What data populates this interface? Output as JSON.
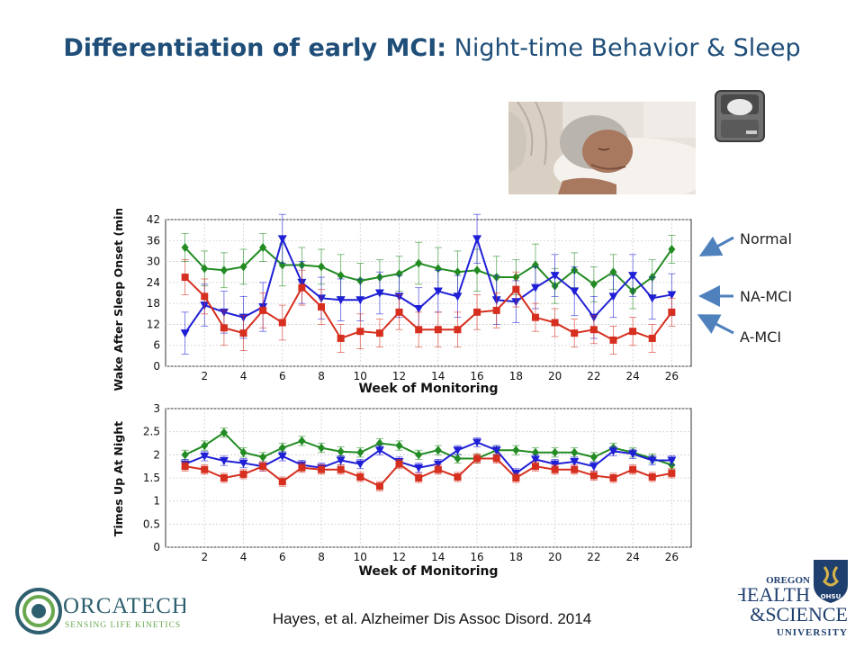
{
  "slide": {
    "title_bold": "Differentiation of early MCI:",
    "title_rest": "Night-time Behavior & Sleep",
    "citation": "Hayes, et al. Alzheimer Dis Assoc Disord. 2014",
    "group_labels": {
      "normal": "Normal",
      "na_mci": "NA-MCI",
      "a_mci": "A-MCI"
    },
    "arrow_color": "#4f81bd",
    "title_color": "#1f4e79"
  },
  "logos": {
    "orcatech": {
      "name": "ORCATECH",
      "tagline": "SENSING LIFE KINETICS",
      "color": "#2e5f6e"
    },
    "ohsu": {
      "line1": "OREGON",
      "line2": "HEALTH",
      "line3": "&SCIENCE",
      "line4": "UNIVERSITY",
      "shield_text": "OHSU",
      "color": "#1f3f6e"
    }
  },
  "chart_data": [
    {
      "type": "line",
      "xlabel": "Week of Monitoring",
      "ylabel": "Wake After Sleep Onset (mins)",
      "xlim": [
        0,
        27
      ],
      "ylim": [
        0,
        42
      ],
      "xticks": [
        2,
        4,
        6,
        8,
        10,
        12,
        14,
        16,
        18,
        20,
        22,
        24,
        26
      ],
      "yticks": [
        0,
        6,
        12,
        18,
        24,
        30,
        36,
        42
      ],
      "grid": true,
      "x": [
        1,
        2,
        3,
        4,
        5,
        6,
        7,
        8,
        9,
        10,
        11,
        12,
        13,
        14,
        15,
        16,
        17,
        18,
        19,
        20,
        21,
        22,
        23,
        24,
        25,
        26
      ],
      "series": [
        {
          "color": "#228b22",
          "marker": "diamond",
          "values": [
            34,
            28,
            27.5,
            28.5,
            34,
            29,
            29,
            28.5,
            26,
            24.5,
            25.5,
            26.5,
            29.5,
            28,
            27,
            27.5,
            25.5,
            25.5,
            29,
            23,
            27.5,
            23.5,
            27,
            21.5,
            25.5,
            33.5
          ],
          "err": [
            4,
            5,
            5,
            5,
            4,
            6,
            5,
            5,
            6,
            5,
            5,
            5,
            6,
            6,
            6,
            6,
            6,
            5,
            6,
            5,
            5,
            5,
            5,
            5,
            5,
            4
          ]
        },
        {
          "color": "#1f1fd6",
          "marker": "triangle-down",
          "values": [
            9.5,
            17.5,
            15.5,
            14,
            17,
            36.5,
            24,
            19.5,
            19,
            19,
            21,
            20,
            16.5,
            21.5,
            20,
            36.5,
            19,
            18.5,
            22.5,
            26,
            21.5,
            14,
            20,
            26,
            19.5,
            20.5
          ],
          "err": [
            6,
            6,
            6,
            6,
            7,
            7,
            6,
            6,
            6,
            6,
            6,
            6,
            6,
            6,
            6,
            7,
            7,
            6,
            6,
            6,
            7,
            6,
            6,
            6,
            6,
            6
          ]
        },
        {
          "color": "#d62f1f",
          "marker": "square",
          "values": [
            25.5,
            20,
            11,
            9.5,
            16,
            12.5,
            22.5,
            17,
            8,
            10,
            9.5,
            15.5,
            10.5,
            10.5,
            10.5,
            15.5,
            16,
            22,
            14,
            12.5,
            9.5,
            10.5,
            7.5,
            10,
            8,
            15.5
          ],
          "err": [
            5,
            5,
            5,
            5,
            5,
            5,
            5,
            5,
            4,
            5,
            4,
            5,
            5,
            5,
            5,
            5,
            5,
            5,
            4,
            4,
            4,
            4,
            4,
            4,
            4,
            4
          ]
        }
      ]
    },
    {
      "type": "line",
      "xlabel": "Week of Monitoring",
      "ylabel": "Times Up At Night",
      "xlim": [
        0,
        27
      ],
      "ylim": [
        0,
        3
      ],
      "xticks": [
        2,
        4,
        6,
        8,
        10,
        12,
        14,
        16,
        18,
        20,
        22,
        24,
        26
      ],
      "yticks": [
        0,
        0.5,
        1,
        1.5,
        2,
        2.5,
        3
      ],
      "grid": true,
      "x": [
        1,
        2,
        3,
        4,
        5,
        6,
        7,
        8,
        9,
        10,
        11,
        12,
        13,
        14,
        15,
        16,
        17,
        18,
        19,
        20,
        21,
        22,
        23,
        24,
        25,
        26
      ],
      "series": [
        {
          "color": "#228b22",
          "marker": "diamond",
          "values": [
            2.0,
            2.2,
            2.48,
            2.05,
            1.95,
            2.15,
            2.3,
            2.15,
            2.07,
            2.05,
            2.25,
            2.2,
            2.0,
            2.1,
            1.92,
            1.92,
            2.1,
            2.1,
            2.05,
            2.05,
            2.05,
            1.95,
            2.15,
            2.05,
            1.92,
            1.78
          ],
          "err": [
            0.1,
            0.1,
            0.1,
            0.1,
            0.1,
            0.1,
            0.1,
            0.1,
            0.1,
            0.1,
            0.1,
            0.1,
            0.1,
            0.1,
            0.1,
            0.1,
            0.1,
            0.1,
            0.1,
            0.1,
            0.1,
            0.1,
            0.1,
            0.1,
            0.1,
            0.1
          ]
        },
        {
          "color": "#1f1fd6",
          "marker": "triangle-down",
          "values": [
            1.8,
            1.97,
            1.87,
            1.82,
            1.75,
            1.97,
            1.78,
            1.72,
            1.88,
            1.8,
            2.1,
            1.85,
            1.72,
            1.8,
            2.1,
            2.27,
            2.1,
            1.6,
            1.9,
            1.8,
            1.85,
            1.75,
            2.08,
            2.02,
            1.88,
            1.88
          ],
          "err": [
            0.1,
            0.1,
            0.1,
            0.1,
            0.1,
            0.1,
            0.1,
            0.1,
            0.1,
            0.1,
            0.1,
            0.1,
            0.1,
            0.1,
            0.1,
            0.1,
            0.1,
            0.1,
            0.1,
            0.1,
            0.1,
            0.1,
            0.1,
            0.1,
            0.1,
            0.1
          ]
        },
        {
          "color": "#d62f1f",
          "marker": "square",
          "values": [
            1.75,
            1.68,
            1.5,
            1.58,
            1.75,
            1.42,
            1.72,
            1.68,
            1.68,
            1.52,
            1.32,
            1.8,
            1.5,
            1.68,
            1.52,
            1.92,
            1.92,
            1.5,
            1.75,
            1.68,
            1.68,
            1.55,
            1.5,
            1.68,
            1.52,
            1.6
          ],
          "err": [
            0.1,
            0.1,
            0.1,
            0.1,
            0.1,
            0.1,
            0.1,
            0.1,
            0.1,
            0.1,
            0.1,
            0.1,
            0.1,
            0.1,
            0.1,
            0.1,
            0.1,
            0.1,
            0.1,
            0.1,
            0.1,
            0.1,
            0.1,
            0.1,
            0.1,
            0.1
          ]
        }
      ]
    }
  ]
}
